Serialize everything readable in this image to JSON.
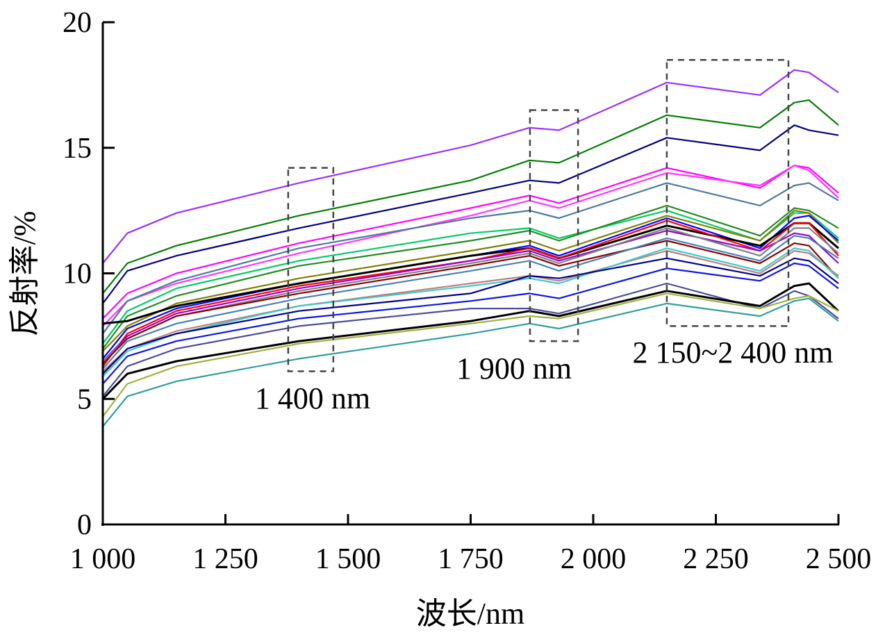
{
  "chart_data": {
    "type": "line",
    "title": "",
    "xlabel": "波长/nm",
    "ylabel": "反射率/%",
    "xlim": [
      1000,
      2500
    ],
    "ylim": [
      0,
      20
    ],
    "grid": false,
    "x_ticks": [
      1000,
      1250,
      1500,
      1750,
      2000,
      2250,
      2500
    ],
    "x_tick_labels": [
      "1 000",
      "1 250",
      "1 500",
      "1 750",
      "2 000",
      "2 250",
      "2 500"
    ],
    "y_ticks": [
      0,
      5,
      10,
      15,
      20
    ],
    "y_tick_labels": [
      "0",
      "5",
      "10",
      "15",
      "20"
    ],
    "x": [
      1000,
      1050,
      1150,
      1400,
      1750,
      1870,
      1930,
      2150,
      2340,
      2410,
      2440,
      2500
    ],
    "series": [
      {
        "color": "#9b30ff",
        "values": [
          10.4,
          11.6,
          12.4,
          13.6,
          15.1,
          15.8,
          15.7,
          17.6,
          17.1,
          18.1,
          18.0,
          17.2
        ]
      },
      {
        "color": "#008000",
        "values": [
          9.2,
          10.4,
          11.1,
          12.3,
          13.7,
          14.5,
          14.4,
          16.3,
          15.8,
          16.8,
          16.9,
          15.9
        ]
      },
      {
        "color": "#000080",
        "values": [
          8.8,
          10.1,
          10.7,
          11.8,
          13.2,
          13.7,
          13.6,
          15.4,
          14.9,
          15.9,
          15.7,
          15.5
        ]
      },
      {
        "color": "#ff00ff",
        "values": [
          8.2,
          9.2,
          10.0,
          11.2,
          12.6,
          13.1,
          12.8,
          14.2,
          13.4,
          14.3,
          14.2,
          13.2
        ]
      },
      {
        "color": "#ff33ff",
        "values": [
          7.9,
          8.9,
          9.6,
          10.8,
          12.3,
          12.9,
          12.6,
          14.0,
          13.5,
          14.3,
          14.1,
          13.0
        ]
      },
      {
        "color": "#4a7aa0",
        "values": [
          7.6,
          8.9,
          9.7,
          11.0,
          12.2,
          12.5,
          12.2,
          13.6,
          12.7,
          13.5,
          13.6,
          12.9
        ]
      },
      {
        "color": "#00cc66",
        "values": [
          7.2,
          8.5,
          9.4,
          10.5,
          11.6,
          11.8,
          11.4,
          12.5,
          11.3,
          12.4,
          12.4,
          11.4
        ]
      },
      {
        "color": "#228b22",
        "values": [
          7.0,
          8.3,
          9.1,
          10.3,
          11.3,
          11.7,
          11.3,
          12.7,
          11.5,
          12.6,
          12.5,
          11.8
        ]
      },
      {
        "color": "#808000",
        "values": [
          6.9,
          7.9,
          8.8,
          9.8,
          10.9,
          11.3,
          10.9,
          12.3,
          11.3,
          12.5,
          12.4,
          11.2
        ]
      },
      {
        "color": "#0000ff",
        "values": [
          6.6,
          7.8,
          8.6,
          9.6,
          10.7,
          11.1,
          10.7,
          12.2,
          11.0,
          12.2,
          12.3,
          11.3
        ]
      },
      {
        "color": "#000000",
        "values": [
          8.0,
          8.1,
          8.7,
          9.6,
          10.7,
          11.0,
          10.6,
          11.9,
          11.1,
          12.0,
          12.0,
          11.0
        ]
      },
      {
        "color": "#ff0000",
        "values": [
          6.3,
          7.6,
          8.5,
          9.5,
          10.5,
          11.0,
          10.6,
          12.1,
          10.9,
          12.0,
          12.0,
          10.7
        ]
      },
      {
        "color": "#9400d3",
        "values": [
          6.5,
          7.5,
          8.4,
          9.4,
          10.5,
          10.9,
          10.5,
          11.7,
          10.9,
          11.6,
          11.5,
          10.4
        ]
      },
      {
        "color": "#808080",
        "values": [
          6.5,
          7.4,
          8.3,
          9.3,
          10.4,
          10.8,
          10.4,
          11.8,
          10.7,
          11.8,
          11.8,
          10.8
        ]
      },
      {
        "color": "#8b0000",
        "values": [
          6.4,
          7.4,
          8.3,
          9.2,
          10.3,
          10.7,
          10.3,
          11.3,
          10.4,
          11.2,
          11.1,
          9.8
        ]
      },
      {
        "color": "#4682b4",
        "values": [
          6.2,
          7.3,
          8.0,
          9.0,
          10.1,
          10.5,
          10.1,
          11.4,
          10.5,
          11.5,
          11.4,
          10.6
        ]
      },
      {
        "color": "#bc7f7f",
        "values": [
          6.1,
          7.0,
          7.7,
          8.7,
          9.6,
          9.9,
          9.7,
          10.9,
          10.0,
          10.9,
          10.8,
          9.9
        ]
      },
      {
        "color": "#40c8c8",
        "values": [
          5.9,
          6.9,
          7.6,
          8.7,
          9.5,
          9.8,
          9.6,
          11.0,
          10.1,
          11.0,
          10.9,
          9.8
        ]
      },
      {
        "color": "#00008b",
        "values": [
          6.0,
          7.0,
          7.6,
          8.5,
          9.2,
          9.9,
          9.8,
          10.6,
          9.9,
          10.6,
          10.5,
          9.6
        ]
      },
      {
        "color": "#0a14e6",
        "values": [
          5.6,
          6.7,
          7.3,
          8.2,
          8.9,
          9.2,
          9.0,
          10.2,
          9.7,
          10.4,
          10.3,
          9.4
        ]
      },
      {
        "color": "#4b4b9b",
        "values": [
          5.1,
          6.3,
          7.0,
          7.9,
          8.6,
          8.6,
          8.4,
          9.6,
          8.6,
          9.3,
          9.1,
          8.2
        ]
      },
      {
        "color": "#000000",
        "values": [
          5.0,
          6.0,
          6.5,
          7.3,
          8.1,
          8.5,
          8.3,
          9.3,
          8.7,
          9.5,
          9.6,
          8.5
        ]
      },
      {
        "color": "#a0b040",
        "values": [
          4.3,
          5.6,
          6.3,
          7.2,
          8.0,
          8.3,
          8.2,
          9.2,
          8.6,
          9.0,
          9.1,
          8.5
        ]
      },
      {
        "color": "#2e9e9e",
        "values": [
          3.9,
          5.1,
          5.7,
          6.6,
          7.6,
          8.0,
          7.8,
          8.8,
          8.3,
          8.9,
          9.0,
          8.1
        ]
      }
    ],
    "annotations": [
      {
        "label": "1 400 nm",
        "region_x": [
          1378,
          1470
        ],
        "region_y": [
          6.1,
          14.2
        ]
      },
      {
        "label": "1 900 nm",
        "region_x": [
          1871,
          1969
        ],
        "region_y": [
          7.3,
          16.5
        ]
      },
      {
        "label": "2 150~2 400 nm",
        "region_x": [
          2150,
          2398
        ],
        "region_y": [
          7.9,
          18.5
        ]
      }
    ]
  }
}
